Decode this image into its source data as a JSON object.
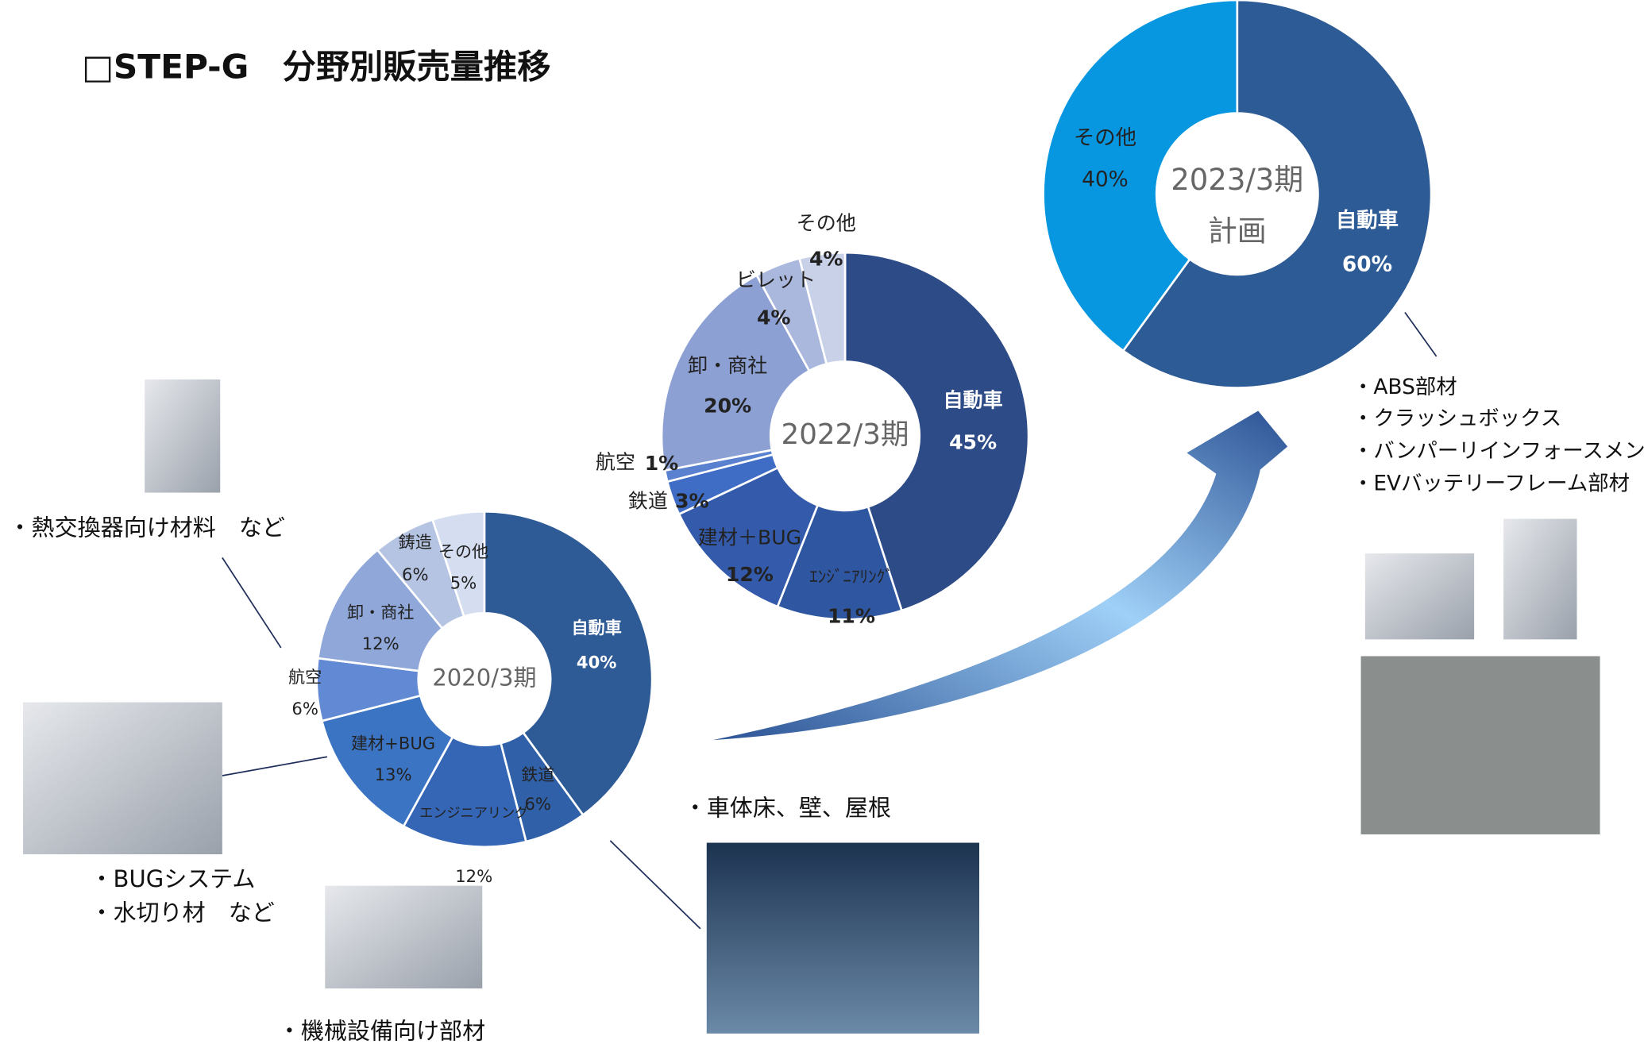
{
  "title": "□STEP-G　分野別販売量推移",
  "chart_data": [
    {
      "type": "pie",
      "title": "2020/3期",
      "categories": [
        "自動車",
        "鉄道",
        "エンジニアリング",
        "建材+BUG",
        "航空",
        "卸・商社",
        "鋳造",
        "その他"
      ],
      "values": [
        40,
        6,
        12,
        13,
        6,
        12,
        6,
        5
      ],
      "value_labels": [
        "40%",
        "6%",
        "12%",
        "13%",
        "6%",
        "12%",
        "6%",
        "5%"
      ],
      "colors": [
        "#2e5b96",
        "#2f60a8",
        "#3566b6",
        "#3c74c4",
        "#6289d4",
        "#8fa7d9",
        "#b5c4e3",
        "#d5ddf0"
      ]
    },
    {
      "type": "pie",
      "title": "2022/3期",
      "categories": [
        "自動車",
        "ｴﾝｼﾞﾆｱﾘﾝｸﾞ",
        "建材＋BUG",
        "鉄道",
        "航空",
        "卸・商社",
        "ビレット",
        "その他"
      ],
      "values": [
        45,
        11,
        12,
        3,
        1,
        20,
        4,
        4
      ],
      "value_labels": [
        "45%",
        "11%",
        "12%",
        "3%",
        "1%",
        "20%",
        "4%",
        "4%"
      ],
      "colors": [
        "#2d4b87",
        "#2f56a1",
        "#345aab",
        "#3f6dc5",
        "#5a81d0",
        "#8da0d3",
        "#abb8dd",
        "#c9d1e9"
      ]
    },
    {
      "type": "pie",
      "title": "2023/3期",
      "subtitle": "計画",
      "categories": [
        "自動車",
        "その他"
      ],
      "values": [
        60,
        40
      ],
      "value_labels": [
        "60%",
        "40%"
      ],
      "colors": [
        "#2d5b95",
        "#0797e0"
      ]
    }
  ],
  "annotations": [
    "・熱交換器向け材料　など",
    "・BUGシステム",
    "・水切り材　など",
    "・機械設備向け部材",
    "・車体床、壁、屋根",
    "・ABS部材",
    "・クラッシュボックス",
    "・バンパーリインフォースメント",
    "・EVバッテリーフレーム部材"
  ]
}
